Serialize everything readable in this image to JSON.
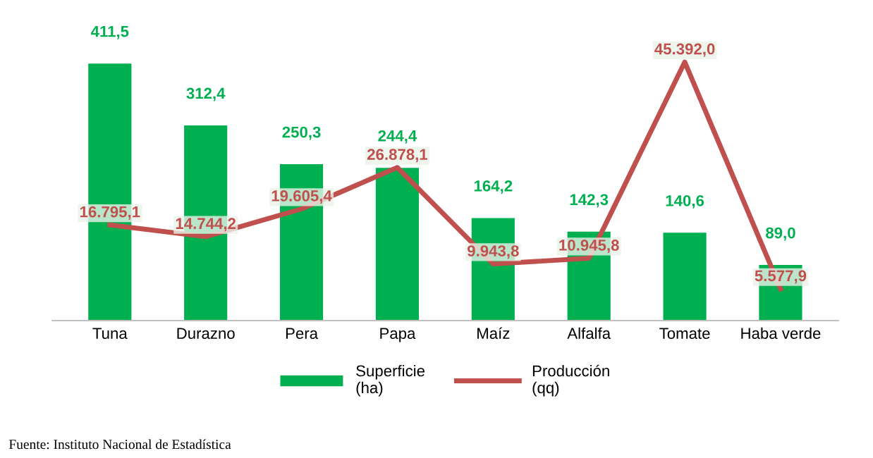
{
  "chart_data": {
    "type": "bar",
    "categories": [
      "Tuna",
      "Durazno",
      "Pera",
      "Papa",
      "Maíz",
      "Alfalfa",
      "Tomate",
      "Haba verde"
    ],
    "series": [
      {
        "name": "Superficie\n(ha)",
        "color": "#00b050",
        "values": [
          411.5,
          312.4,
          250.3,
          244.4,
          164.2,
          142.3,
          140.6,
          89.0
        ],
        "value_labels": [
          "411,5",
          "312,4",
          "250,3",
          "244,4",
          "164,2",
          "142,3",
          "140,6",
          "89,0"
        ]
      },
      {
        "name": "Producción\n(qq)",
        "type": "line",
        "axis": "y2",
        "color": "#c0504d",
        "values": [
          16795.1,
          14744.2,
          19605.4,
          26878.1,
          9943.8,
          10945.8,
          45392.0,
          5577.9
        ],
        "value_labels": [
          "16.795,1",
          "14.744,2",
          "19.605,4",
          "26.878,1",
          "9.943,8",
          "10.945,8",
          "45.392,0",
          "5.577,9"
        ]
      }
    ],
    "legend": "bottom",
    "grid": false,
    "tick_labels": "x",
    "marker": "none",
    "line_style": "solid",
    "annotations": [
      "Fuente: Instituto Nacional de Estadística"
    ]
  }
}
